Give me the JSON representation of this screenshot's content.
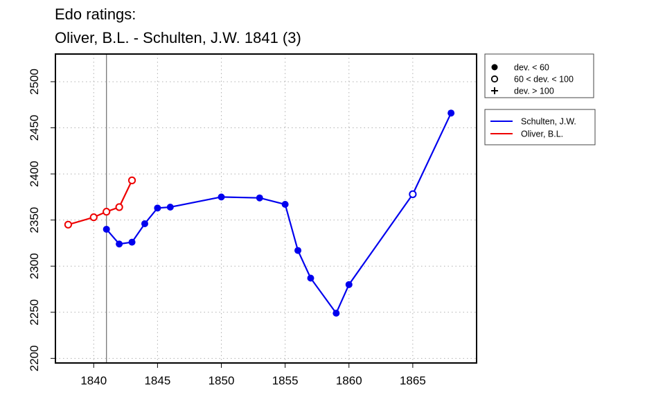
{
  "chart_data": {
    "type": "line",
    "title": "Edo ratings:",
    "subtitle": "Oliver, B.L. - Schulten, J.W. 1841 (3)",
    "xlabel": "",
    "ylabel": "",
    "xlim": [
      1837,
      1870
    ],
    "ylim": [
      2195,
      2530
    ],
    "x_ticks": [
      1840,
      1845,
      1850,
      1855,
      1860,
      1865
    ],
    "y_ticks": [
      2200,
      2250,
      2300,
      2350,
      2400,
      2450,
      2500
    ],
    "grid": true,
    "reference_line_x": 1841,
    "marker_legend": [
      {
        "symbol": "filled-circle",
        "label": "dev. < 60"
      },
      {
        "symbol": "open-circle",
        "label": "60 < dev. < 100"
      },
      {
        "symbol": "plus",
        "label": "dev. > 100"
      }
    ],
    "series": [
      {
        "name": "Schulten, J.W.",
        "color": "#0000ee",
        "points": [
          {
            "x": 1841,
            "y": 2340,
            "marker": "filled"
          },
          {
            "x": 1842,
            "y": 2324,
            "marker": "filled"
          },
          {
            "x": 1843,
            "y": 2326,
            "marker": "filled"
          },
          {
            "x": 1844,
            "y": 2346,
            "marker": "filled"
          },
          {
            "x": 1845,
            "y": 2363,
            "marker": "filled"
          },
          {
            "x": 1846,
            "y": 2364,
            "marker": "filled"
          },
          {
            "x": 1850,
            "y": 2375,
            "marker": "filled"
          },
          {
            "x": 1853,
            "y": 2374,
            "marker": "filled"
          },
          {
            "x": 1855,
            "y": 2367,
            "marker": "filled"
          },
          {
            "x": 1856,
            "y": 2317,
            "marker": "filled"
          },
          {
            "x": 1857,
            "y": 2287,
            "marker": "filled"
          },
          {
            "x": 1859,
            "y": 2249,
            "marker": "filled"
          },
          {
            "x": 1860,
            "y": 2280,
            "marker": "filled"
          },
          {
            "x": 1865,
            "y": 2378,
            "marker": "open"
          },
          {
            "x": 1868,
            "y": 2466,
            "marker": "filled"
          }
        ]
      },
      {
        "name": "Oliver, B.L.",
        "color": "#ee0000",
        "points": [
          {
            "x": 1838,
            "y": 2345,
            "marker": "open"
          },
          {
            "x": 1840,
            "y": 2353,
            "marker": "open"
          },
          {
            "x": 1841,
            "y": 2359,
            "marker": "open"
          },
          {
            "x": 1842,
            "y": 2364,
            "marker": "open"
          },
          {
            "x": 1843,
            "y": 2393,
            "marker": "open"
          }
        ]
      }
    ]
  }
}
